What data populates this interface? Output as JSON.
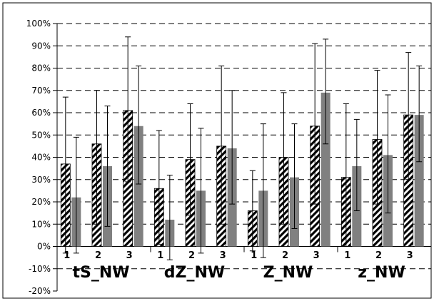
{
  "chart_data": {
    "type": "bar",
    "ylim": [
      -20,
      100
    ],
    "y_ticks": [
      "100%",
      "90%",
      "80%",
      "70%",
      "60%",
      "50%",
      "40%",
      "30%",
      "20%",
      "10%",
      "0%",
      "-10%",
      "-20%"
    ],
    "grid": "dashed horizontal",
    "groups": [
      {
        "label": "tS_NW",
        "subcategories": [
          "1",
          "2",
          "3"
        ]
      },
      {
        "label": "dZ_NW",
        "subcategories": [
          "1",
          "2",
          "3"
        ]
      },
      {
        "label": "Z_NW",
        "subcategories": [
          "1",
          "2",
          "3"
        ]
      },
      {
        "label": "z_NW",
        "subcategories": [
          "1",
          "2",
          "3"
        ]
      }
    ],
    "series": [
      {
        "style": "hatched",
        "color": "#000000",
        "values": [
          37,
          46,
          61,
          26,
          39,
          45,
          16,
          40,
          54,
          31,
          48,
          59
        ],
        "error_low": [
          -3,
          10,
          29,
          1,
          14,
          10,
          -2,
          10,
          19,
          0,
          19,
          30
        ],
        "error_high": [
          67,
          70,
          94,
          52,
          64,
          81,
          34,
          69,
          91,
          64,
          79,
          87
        ]
      },
      {
        "style": "solid",
        "color": "#808080",
        "values": [
          22,
          36,
          54,
          12,
          25,
          44,
          25,
          31,
          69,
          36,
          41,
          59
        ],
        "error_low": [
          -3,
          9,
          28,
          -6,
          -3,
          19,
          -5,
          8,
          46,
          16,
          15,
          38
        ],
        "error_high": [
          49,
          63,
          81,
          32,
          53,
          70,
          55,
          55,
          93,
          57,
          68,
          81
        ]
      }
    ]
  }
}
